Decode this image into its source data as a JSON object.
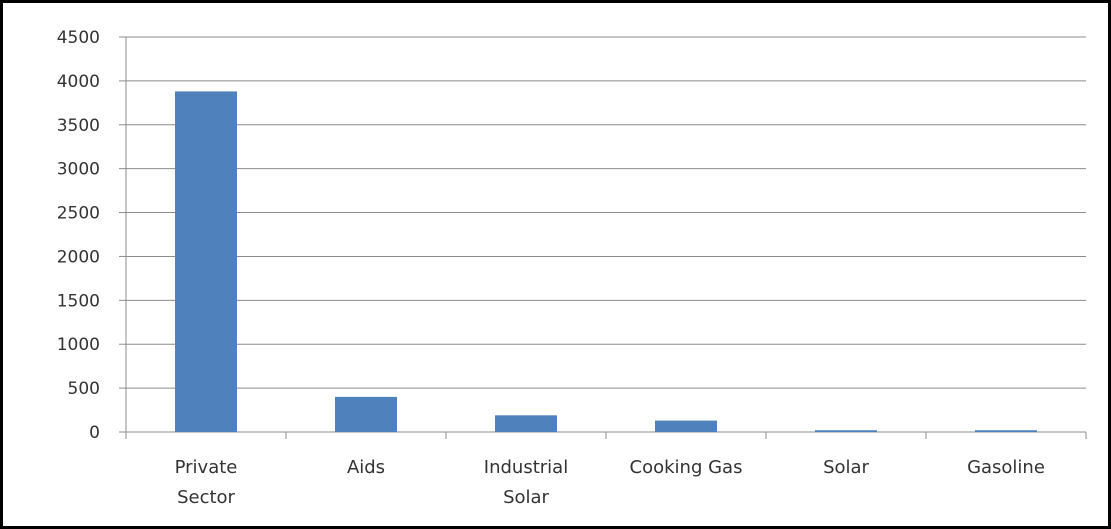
{
  "chart_data": {
    "type": "bar",
    "categories": [
      [
        "Private",
        "Sector"
      ],
      [
        "Aids"
      ],
      [
        "Industrial",
        "Solar"
      ],
      [
        "Cooking Gas"
      ],
      [
        "Solar"
      ],
      [
        "Gasoline"
      ]
    ],
    "values": [
      3880,
      400,
      190,
      130,
      20,
      20
    ],
    "ylim": [
      0,
      4500
    ],
    "yticks": [
      0,
      500,
      1000,
      1500,
      2000,
      2500,
      3000,
      3500,
      4000,
      4500
    ],
    "grid": true,
    "legend": "none",
    "title": "",
    "xlabel": "",
    "ylabel": ""
  },
  "colors": {
    "bar": "#4F81BD",
    "grid": "#8c8c8c",
    "axis": "#8c8c8c",
    "frame": "#000000"
  }
}
